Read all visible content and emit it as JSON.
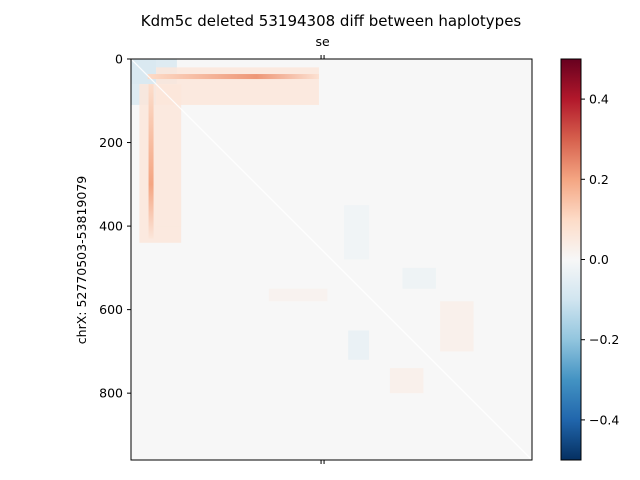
{
  "chart_data": {
    "type": "heatmap",
    "title": "Kdm5c deleted 53194308 diff between haplotypes",
    "ylabel": "chrX: 52770503-53819079",
    "xlabel": "",
    "top_axis_ticks": [
      {
        "position": 455,
        "label": "se"
      }
    ],
    "bottom_axis_ticks": [
      {
        "position": 455,
        "label": ""
      }
    ],
    "y_ticks": [
      0,
      200,
      400,
      600,
      800
    ],
    "matrix_extent": [
      0,
      960
    ],
    "grid": false,
    "colormap": "RdBu_r",
    "colorbar": {
      "range": [
        -0.5,
        0.5
      ],
      "ticks": [
        0.4,
        0.2,
        0.0,
        -0.2,
        -0.4
      ],
      "tick_labels": [
        "0.4",
        "0.2",
        "0.0",
        "−0.2",
        "−0.4"
      ]
    },
    "features": [
      {
        "kind": "hline",
        "row": 42,
        "from": 40,
        "to": 450,
        "peak_at": 300,
        "value": 0.22
      },
      {
        "kind": "vline",
        "col": 48,
        "from": 60,
        "to": 430,
        "peak_at": 300,
        "value": 0.2
      },
      {
        "kind": "region",
        "rows": [
          0,
          110
        ],
        "cols": [
          0,
          60
        ],
        "value": -0.08
      },
      {
        "kind": "region",
        "rows": [
          0,
          60
        ],
        "cols": [
          0,
          110
        ],
        "value": -0.08
      },
      {
        "kind": "region",
        "rows": [
          20,
          110
        ],
        "cols": [
          60,
          450
        ],
        "value": 0.06
      },
      {
        "kind": "region",
        "rows": [
          60,
          440
        ],
        "cols": [
          20,
          120
        ],
        "value": 0.06
      },
      {
        "kind": "region",
        "rows": [
          330,
          400
        ],
        "cols": [
          60,
          120
        ],
        "value": 0.05
      },
      {
        "kind": "region",
        "rows": [
          650,
          720
        ],
        "cols": [
          520,
          570
        ],
        "value": -0.04
      },
      {
        "kind": "region",
        "rows": [
          740,
          800
        ],
        "cols": [
          620,
          700
        ],
        "value": 0.03
      },
      {
        "kind": "region",
        "rows": [
          500,
          550
        ],
        "cols": [
          650,
          730
        ],
        "value": -0.03
      },
      {
        "kind": "region",
        "rows": [
          580,
          700
        ],
        "cols": [
          740,
          820
        ],
        "value": 0.03
      },
      {
        "kind": "region",
        "rows": [
          550,
          580
        ],
        "cols": [
          330,
          470
        ],
        "value": 0.02
      },
      {
        "kind": "region",
        "rows": [
          350,
          480
        ],
        "cols": [
          510,
          570
        ],
        "value": -0.02
      }
    ]
  }
}
